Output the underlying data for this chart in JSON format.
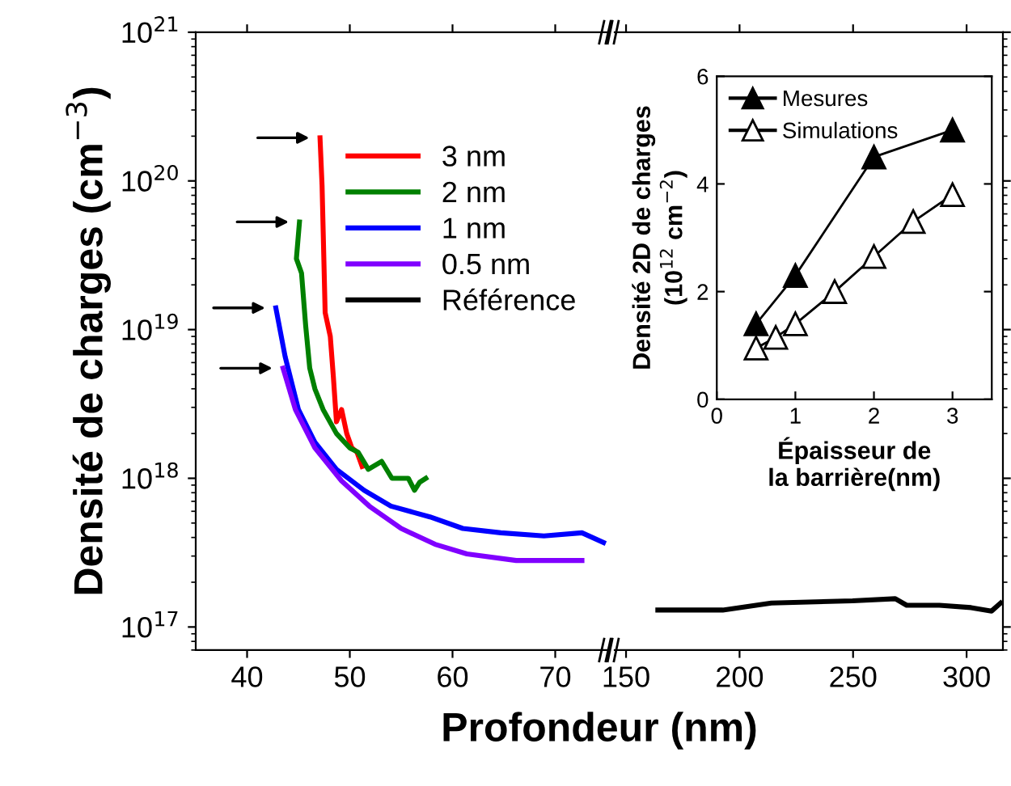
{
  "chart_data": [
    {
      "type": "line",
      "xlabel": "Profondeur (nm)",
      "ylabel": "Densité de charges (cm$^{−3}$)",
      "log": "y",
      "xlim": [
        35,
        75
      ],
      "xticks": [
        40,
        50,
        60,
        70
      ],
      "ylim": [
        7e+16,
        1e+21
      ],
      "yticks": [
        {
          "value": 1e+17,
          "label": "10$^{17}$"
        },
        {
          "value": 1e+18,
          "label": "10$^{18}$"
        },
        {
          "value": 1e+19,
          "label": "10$^{19}$"
        },
        {
          "value": 1e+20,
          "label": "10$^{20}$"
        },
        {
          "value": 1e+21,
          "label": "10$^{21}$"
        }
      ],
      "legend": "top right",
      "grid": false,
      "series": [
        {
          "name": "3 nm",
          "color": "#ff0000",
          "x": [
            47.1,
            47.3,
            47.6,
            48.1,
            48.4,
            48.7,
            49.2,
            49.7,
            50.2,
            50.7,
            51.2
          ],
          "values": [
            1.95e+20,
            9.3e+19,
            1.3e+19,
            9e+18,
            4.8e+18,
            2.4e+18,
            2.9e+18,
            2e+18,
            1.6e+18,
            1.5e+18,
            1.2e+18
          ]
        },
        {
          "name": "2 nm",
          "color": "#008000",
          "x": [
            45.1,
            44.8,
            45.3,
            45.7,
            46.1,
            46.6,
            47.4,
            48.7,
            50.0,
            50.8,
            51.8,
            53.1,
            54.1,
            55.7,
            56.3,
            56.8,
            57.4
          ],
          "values": [
            5.3e+19,
            3e+19,
            2.4e+19,
            1.07e+19,
            5.5e+18,
            4e+18,
            2.9e+18,
            2e+18,
            1.6e+18,
            1.5e+18,
            1.15e+18,
            1.3e+18,
            1e+18,
            1e+18,
            8.3e+17,
            9.4e+17,
            1e+18
          ]
        },
        {
          "name": "1 nm",
          "color": "#0000ff",
          "x": [
            42.8,
            43.7,
            45.0,
            46.6,
            48.7,
            51.4,
            54.0,
            56.2,
            57.8,
            61.0,
            64.7,
            68.9,
            72.6,
            74.7
          ],
          "values": [
            1.4e+19,
            6.6e+18,
            2.9e+18,
            1.75e+18,
            1.15e+18,
            8.3e+17,
            6.5e+17,
            5.9e+17,
            5.5e+17,
            4.6e+17,
            4.3e+17,
            4.1e+17,
            4.3e+17,
            3.7e+17
          ]
        },
        {
          "name": "0.5 nm",
          "color": "#8000ff",
          "x": [
            43.5,
            44.7,
            46.6,
            49.2,
            51.9,
            55.0,
            58.3,
            61.4,
            66.2,
            72.6
          ],
          "values": [
            5.5e+18,
            2.9e+18,
            1.6e+18,
            9.6e+17,
            6.5e+17,
            4.6e+17,
            3.6e+17,
            3.1e+17,
            2.8e+17,
            2.8e+17
          ]
        }
      ]
    },
    {
      "type": "line",
      "log": "y",
      "xlim": [
        145,
        316
      ],
      "xticks": [
        150,
        200,
        250,
        300
      ],
      "ylim": [
        7e+16,
        1e+21
      ],
      "tick_labels": "x",
      "grid": false,
      "series": [
        {
          "name": "Référence",
          "color": "#000000",
          "x": [
            164,
            192.6,
            214,
            249.8,
            268.6,
            273.6,
            288,
            302,
            311,
            315
          ],
          "values": [
            1.3e+17,
            1.3e+17,
            1.45e+17,
            1.5e+17,
            1.55e+17,
            1.4e+17,
            1.4e+17,
            1.35e+17,
            1.28e+17,
            1.45e+17
          ]
        }
      ]
    },
    {
      "type": "line",
      "xlabel": "Épaisseur de\nla barrière(nm)",
      "ylabel": "Densité 2D de charges\n(10$^{12}$ cm$^{−2}$)",
      "xlim": [
        0,
        3.5
      ],
      "xticks": [
        0,
        1,
        2,
        3
      ],
      "ylim": [
        0,
        6
      ],
      "yticks": [
        0,
        2,
        4,
        6
      ],
      "marker": "triangle",
      "legend": "top left",
      "grid": false,
      "series": [
        {
          "name": "Mesures",
          "color": "#000000",
          "x": [
            0.5,
            1,
            2,
            3
          ],
          "values": [
            1.4,
            2.3,
            4.5,
            5.0
          ]
        },
        {
          "name": "Simulations",
          "color": "#000000",
          "x": [
            0.5,
            0.75,
            1,
            1.5,
            2,
            2.5,
            3
          ],
          "values": [
            0.95,
            1.15,
            1.4,
            2.0,
            2.65,
            3.3,
            3.8
          ]
        }
      ]
    }
  ]
}
